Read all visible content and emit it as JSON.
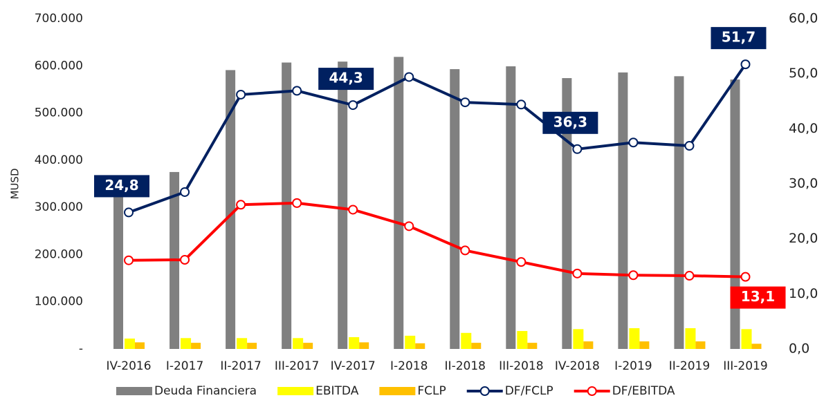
{
  "chart_data": {
    "type": "bar_line",
    "y_label": "MUSD",
    "categories": [
      "IV-2016",
      "I-2017",
      "II-2017",
      "III-2017",
      "IV-2017",
      "I-2018",
      "II-2018",
      "III-2018",
      "IV-2018",
      "I-2019",
      "II-2019",
      "III-2019"
    ],
    "ylim": [
      0,
      700000
    ],
    "yticks": [
      {
        "value": 0,
        "label": "-"
      },
      {
        "value": 100000,
        "label": "100.000"
      },
      {
        "value": 200000,
        "label": "200.000"
      },
      {
        "value": 300000,
        "label": "300.000"
      },
      {
        "value": 400000,
        "label": "400.000"
      },
      {
        "value": 500000,
        "label": "500.000"
      },
      {
        "value": 600000,
        "label": "600.000"
      },
      {
        "value": 700000,
        "label": "700.000"
      }
    ],
    "y2lim": [
      0,
      60
    ],
    "y2ticks": [
      {
        "value": 0,
        "label": "0,0"
      },
      {
        "value": 10,
        "label": "10,0"
      },
      {
        "value": 20,
        "label": "20,0"
      },
      {
        "value": 30,
        "label": "30,0"
      },
      {
        "value": 40,
        "label": "40,0"
      },
      {
        "value": 50,
        "label": "50,0"
      },
      {
        "value": 60,
        "label": "60,0"
      }
    ],
    "grid": false,
    "legend": "bottom",
    "series": [
      {
        "name": "Deuda Financiera",
        "type": "bar",
        "color": "#808080",
        "values": [
          330000,
          375000,
          591000,
          607000,
          609000,
          619000,
          593000,
          599000,
          574000,
          586000,
          578000,
          571000
        ]
      },
      {
        "name": "EBITDA",
        "type": "bar",
        "color": "#ffff00",
        "values": [
          22000,
          23000,
          23000,
          23000,
          25000,
          28000,
          34000,
          38000,
          42000,
          44000,
          44000,
          42000
        ]
      },
      {
        "name": "FCLP",
        "type": "bar",
        "color": "#ffc000",
        "values": [
          14000,
          13000,
          13000,
          13000,
          14000,
          12000,
          13000,
          13000,
          16000,
          16000,
          16000,
          11000
        ]
      },
      {
        "name": "DF/FCLP",
        "type": "line",
        "axis": "y2",
        "color": "#002060",
        "values": [
          24.8,
          28.5,
          46.2,
          46.9,
          44.3,
          49.4,
          44.8,
          44.4,
          36.3,
          37.5,
          36.9,
          51.7
        ],
        "value_labels": [
          "24,8",
          null,
          null,
          null,
          "44,3",
          null,
          null,
          null,
          "36,3",
          null,
          null,
          "51,7"
        ]
      },
      {
        "name": "DF/EBITDA",
        "type": "line",
        "axis": "y2",
        "color": "#ff0000",
        "values": [
          16.1,
          16.2,
          26.2,
          26.5,
          25.3,
          22.3,
          17.9,
          15.8,
          13.7,
          13.4,
          13.3,
          13.1
        ],
        "value_labels": [
          null,
          null,
          null,
          null,
          null,
          null,
          null,
          null,
          null,
          null,
          null,
          "13,1"
        ]
      }
    ]
  }
}
